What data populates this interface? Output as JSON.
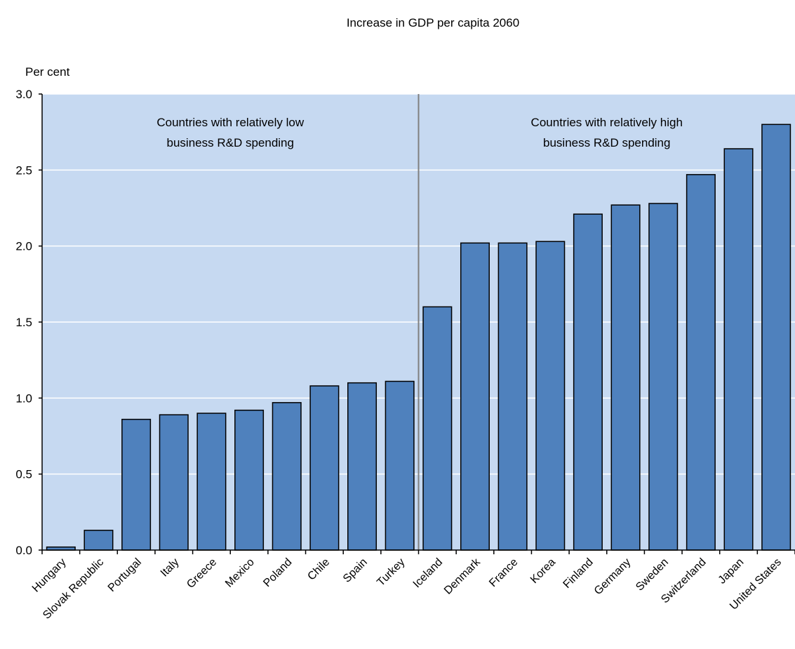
{
  "chart_data": {
    "type": "bar",
    "title": "Increase in GDP per capita 2060",
    "ylabel": "Per cent",
    "xlabel": "",
    "ylim": [
      0,
      3.0
    ],
    "yticks": [
      "0.0",
      "0.5",
      "1.0",
      "1.5",
      "2.0",
      "2.5",
      "3.0"
    ],
    "ytick_values": [
      0,
      0.5,
      1.0,
      1.5,
      2.0,
      2.5,
      3.0
    ],
    "grid": true,
    "categories": [
      "Hungary",
      "Slovak Republic",
      "Portugal",
      "Italy",
      "Greece",
      "Mexico",
      "Poland",
      "Chile",
      "Spain",
      "Turkey",
      "Iceland",
      "Denmark",
      "France",
      "Korea",
      "Finland",
      "Germany",
      "Sweden",
      "Switzerland",
      "Japan",
      "United States"
    ],
    "values": [
      0.02,
      0.13,
      0.86,
      0.89,
      0.9,
      0.92,
      0.97,
      1.08,
      1.1,
      1.11,
      1.6,
      2.02,
      2.02,
      2.03,
      2.21,
      2.27,
      2.28,
      2.47,
      2.64,
      2.8
    ],
    "groups": [
      {
        "label": "Countries with relatively low business R&D spending",
        "line1": "Countries with relatively low",
        "line2": "business R&D spending",
        "from": 0,
        "to": 9
      },
      {
        "label": "Countries with relatively high business R&D spending",
        "line1": "Countries with relatively high",
        "line2": "business R&D spending",
        "from": 10,
        "to": 19
      }
    ],
    "colors": {
      "bar": "#4f81bd",
      "bar_edge": "#000000",
      "plot_bg": "#c6d9f1",
      "grid": "#ffffff",
      "divider": "#808080"
    }
  }
}
